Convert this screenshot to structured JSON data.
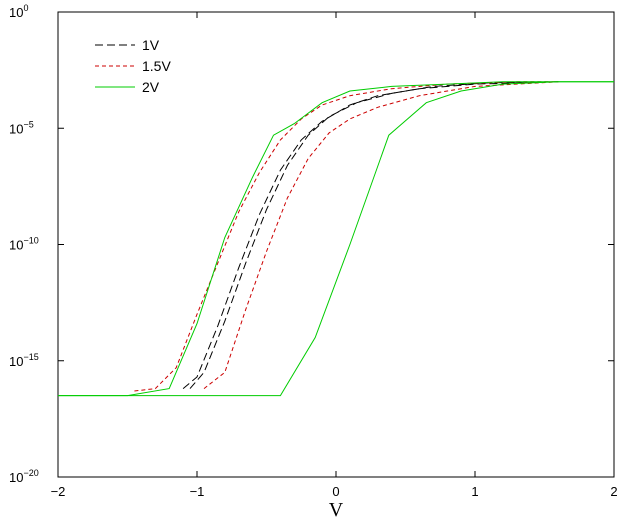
{
  "chart_data": {
    "type": "line",
    "title": "",
    "xlabel": "V",
    "ylabel": "",
    "xlim": [
      -2,
      2
    ],
    "ylim": [
      1e-20,
      1
    ],
    "yscale": "log",
    "grid": false,
    "legend_position": "top-left",
    "x_ticks": [
      {
        "value": -2,
        "label": "−2"
      },
      {
        "value": -1,
        "label": "−1"
      },
      {
        "value": 0,
        "label": "0"
      },
      {
        "value": 1,
        "label": "1"
      },
      {
        "value": 2,
        "label": "2"
      }
    ],
    "y_ticks": [
      {
        "exp": 0,
        "base": "10",
        "sup": "0"
      },
      {
        "exp": -5,
        "base": "10",
        "sup": "−5"
      },
      {
        "exp": -10,
        "base": "10",
        "sup": "−10"
      },
      {
        "exp": -15,
        "base": "10",
        "sup": "−15"
      },
      {
        "exp": -20,
        "base": "10",
        "sup": "−20"
      }
    ],
    "series": [
      {
        "name": "1V",
        "color": "#000000",
        "style": "dashed",
        "legend": true,
        "x": [
          -1.1,
          -1.0,
          -0.85,
          -0.7,
          -0.55,
          -0.4,
          -0.25,
          -0.1,
          0.1,
          0.3,
          0.6,
          1.0,
          1.6
        ],
        "y": [
          -16.2,
          -15.7,
          -13.5,
          -11.0,
          -8.7,
          -6.8,
          -5.5,
          -4.7,
          -4.0,
          -3.6,
          -3.3,
          -3.1,
          -3.0
        ]
      },
      {
        "name": "1V",
        "color": "#000000",
        "style": "dashed",
        "legend": false,
        "x": [
          -1.05,
          -0.95,
          -0.8,
          -0.65,
          -0.5,
          -0.35,
          -0.2,
          -0.05,
          0.15,
          0.4,
          0.7,
          1.1,
          1.6
        ],
        "y": [
          -16.2,
          -15.5,
          -13.3,
          -10.8,
          -8.5,
          -6.6,
          -5.3,
          -4.5,
          -3.9,
          -3.5,
          -3.2,
          -3.05,
          -3.0
        ]
      },
      {
        "name": "1.5V",
        "color": "#cc0000",
        "style": "dotted",
        "legend": true,
        "x": [
          -1.45,
          -1.3,
          -1.15,
          -1.0,
          -0.85,
          -0.7,
          -0.55,
          -0.4,
          -0.25,
          -0.1,
          0.1,
          0.4,
          0.8,
          1.3,
          1.6
        ],
        "y": [
          -16.3,
          -16.2,
          -15.3,
          -13.0,
          -10.8,
          -8.6,
          -6.9,
          -5.5,
          -4.6,
          -4.0,
          -3.6,
          -3.3,
          -3.1,
          -3.0,
          -3.0
        ]
      },
      {
        "name": "1.5V",
        "color": "#cc0000",
        "style": "dotted",
        "legend": false,
        "x": [
          -0.95,
          -0.8,
          -0.65,
          -0.5,
          -0.35,
          -0.2,
          -0.05,
          0.1,
          0.3,
          0.6,
          1.0,
          1.6
        ],
        "y": [
          -16.2,
          -15.5,
          -12.8,
          -10.3,
          -8.0,
          -6.3,
          -5.2,
          -4.6,
          -4.1,
          -3.6,
          -3.2,
          -3.0
        ]
      },
      {
        "name": "2V",
        "color": "#00cc00",
        "style": "solid",
        "legend": true,
        "x": [
          -2.0,
          -1.5,
          -1.2,
          -1.0,
          -0.8,
          -0.6,
          -0.45,
          -0.3,
          -0.1,
          0.1,
          0.4,
          0.8,
          1.2,
          1.6,
          2.0
        ],
        "y": [
          -16.5,
          -16.5,
          -16.2,
          -13.4,
          -9.7,
          -7.1,
          -5.3,
          -4.8,
          -3.9,
          -3.4,
          -3.2,
          -3.1,
          -3.0,
          -3.0,
          -3.0
        ]
      },
      {
        "name": "2V",
        "color": "#00cc00",
        "style": "solid",
        "legend": false,
        "x": [
          -2.0,
          -1.0,
          -0.4,
          -0.15,
          0.1,
          0.38,
          0.65,
          0.9,
          1.2,
          1.6,
          2.0
        ],
        "y": [
          -16.5,
          -16.5,
          -16.5,
          -14.0,
          -10.0,
          -5.3,
          -3.9,
          -3.4,
          -3.1,
          -3.0,
          -3.0
        ]
      }
    ]
  }
}
